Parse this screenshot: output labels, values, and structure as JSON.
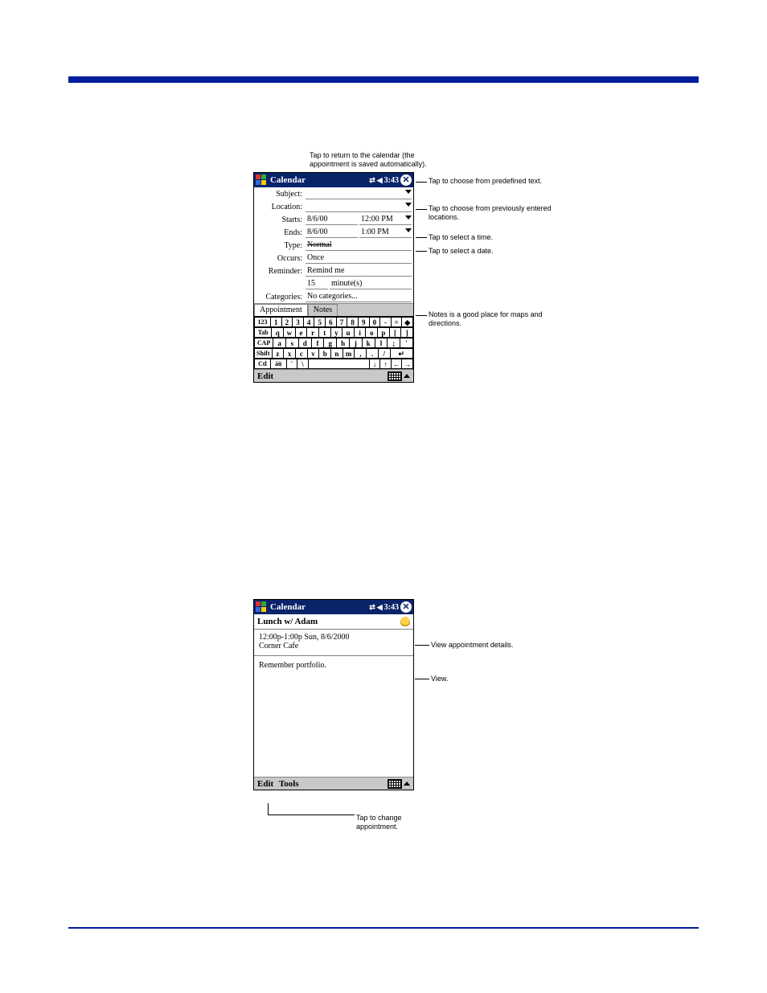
{
  "colors": {
    "accent": "#001E9C",
    "titlebar": "#0A246A",
    "gray": "#c8c8c8"
  },
  "shot1": {
    "top_note": "Tap to return to the calendar (the appointment is saved automatically).",
    "titlebar": {
      "title": "Calendar",
      "time": "3:43"
    },
    "fields": {
      "subject_label": "Subject:",
      "subject_value": "",
      "location_label": "Location:",
      "location_value": "",
      "starts_label": "Starts:",
      "starts_date": "8/6/00",
      "starts_time": "12:00 PM",
      "ends_label": "Ends:",
      "ends_date": "8/6/00",
      "ends_time": "1:00 PM",
      "type_label": "Type:",
      "type_value": "Normal",
      "occurs_label": "Occurs:",
      "occurs_value": "Once",
      "reminder_label": "Reminder:",
      "reminder_value": "Remind me",
      "reminder_qty": "15",
      "reminder_unit": "minute(s)",
      "categories_label": "Categories:",
      "categories_value": "No categories..."
    },
    "tabs": {
      "appointment": "Appointment",
      "notes": "Notes"
    },
    "keyboard": {
      "r1": [
        "123",
        "1",
        "2",
        "3",
        "4",
        "5",
        "6",
        "7",
        "8",
        "9",
        "0",
        "-",
        "=",
        "◆"
      ],
      "r2": [
        "Tab",
        "q",
        "w",
        "e",
        "r",
        "t",
        "y",
        "u",
        "i",
        "o",
        "p",
        "[",
        "]"
      ],
      "r3": [
        "CAP",
        "a",
        "s",
        "d",
        "f",
        "g",
        "h",
        "j",
        "k",
        "l",
        ";",
        "'"
      ],
      "r4": [
        "Shift",
        "z",
        "x",
        "c",
        "v",
        "b",
        "n",
        "m",
        ",",
        ".",
        "/",
        "↵"
      ],
      "r5": [
        "Ctl",
        "áü",
        "`",
        "\\",
        " ",
        "↓",
        "↑",
        "←",
        "→"
      ]
    },
    "bottombar": {
      "edit": "Edit"
    },
    "callouts": {
      "predef_text": "Tap to choose from predefined text.",
      "prev_loc": "Tap to choose from previously entered locations.",
      "sel_time": "Tap to select a time.",
      "sel_date": "Tap to select a date.",
      "notes_hint": "Notes is a good place for maps and directions."
    }
  },
  "shot2": {
    "titlebar": {
      "title": "Calendar",
      "time": "3:43"
    },
    "subject": "Lunch w/ Adam",
    "when": "12:00p-1:00p Sun, 8/6/2000",
    "where": "Corner Cafe",
    "notes": "Remember portfolio.",
    "bottombar": {
      "edit": "Edit",
      "tools": "Tools"
    },
    "callouts": {
      "details": "View appointment details.",
      "view": "View.",
      "change": "Tap to change appointment."
    }
  }
}
